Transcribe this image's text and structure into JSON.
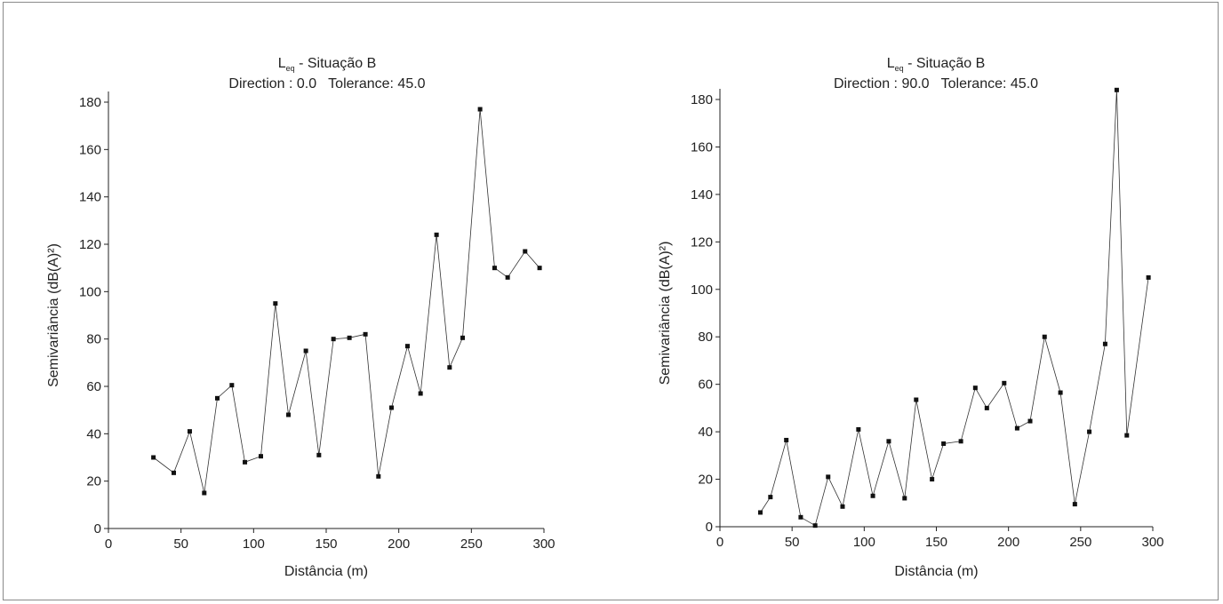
{
  "chart_data": [
    {
      "type": "line",
      "title_main": "L",
      "title_sub": "eq",
      "title_rest": " - Situação B",
      "subtitle": "Direction : 0.0   Tolerance: 45.0",
      "xlabel": "Distância (m)",
      "ylabel": "Semivariância (dB(A)²)",
      "xlim": [
        0,
        300
      ],
      "ylim": [
        0,
        180
      ],
      "xticks": [
        0,
        50,
        100,
        150,
        200,
        250,
        300
      ],
      "yticks": [
        0,
        20,
        40,
        60,
        80,
        100,
        120,
        140,
        160,
        180
      ],
      "grid": false,
      "series": [
        {
          "x": [
            31,
            45,
            56,
            66,
            75,
            85,
            94,
            105,
            115,
            124,
            136,
            145,
            155,
            166,
            177,
            186,
            195,
            206,
            215,
            226,
            235,
            244,
            256,
            266,
            275,
            287,
            297
          ],
          "y": [
            30,
            23.5,
            41,
            15,
            55,
            60.5,
            28,
            30.5,
            95,
            48,
            75,
            31,
            80,
            80.5,
            82,
            22,
            51,
            77,
            57,
            124,
            68,
            80.5,
            177,
            110,
            106,
            117,
            110
          ]
        }
      ]
    },
    {
      "type": "line",
      "title_main": "L",
      "title_sub": "eq",
      "title_rest": " - Situação B",
      "subtitle": "Direction : 90.0   Tolerance: 45.0",
      "xlabel": "Distância (m)",
      "ylabel": "Semivariância (dB(A)²)",
      "xlim": [
        0,
        300
      ],
      "ylim": [
        0,
        180
      ],
      "xticks": [
        0,
        50,
        100,
        150,
        200,
        250,
        300
      ],
      "yticks": [
        0,
        20,
        40,
        60,
        80,
        100,
        120,
        140,
        160,
        180
      ],
      "grid": false,
      "series": [
        {
          "x": [
            28,
            35,
            46,
            56,
            66,
            75,
            85,
            96,
            106,
            117,
            128,
            136,
            147,
            155,
            167,
            177,
            185,
            197,
            206,
            215,
            225,
            236,
            246,
            256,
            267,
            275,
            282,
            297
          ],
          "y": [
            6,
            12.5,
            36.5,
            4,
            0.5,
            21,
            8.5,
            41,
            13,
            36,
            12,
            53.5,
            20,
            35,
            36,
            58.5,
            50,
            60.5,
            41.5,
            44.5,
            80,
            56.5,
            9.5,
            40,
            77,
            184,
            38.5,
            105
          ]
        }
      ]
    }
  ]
}
